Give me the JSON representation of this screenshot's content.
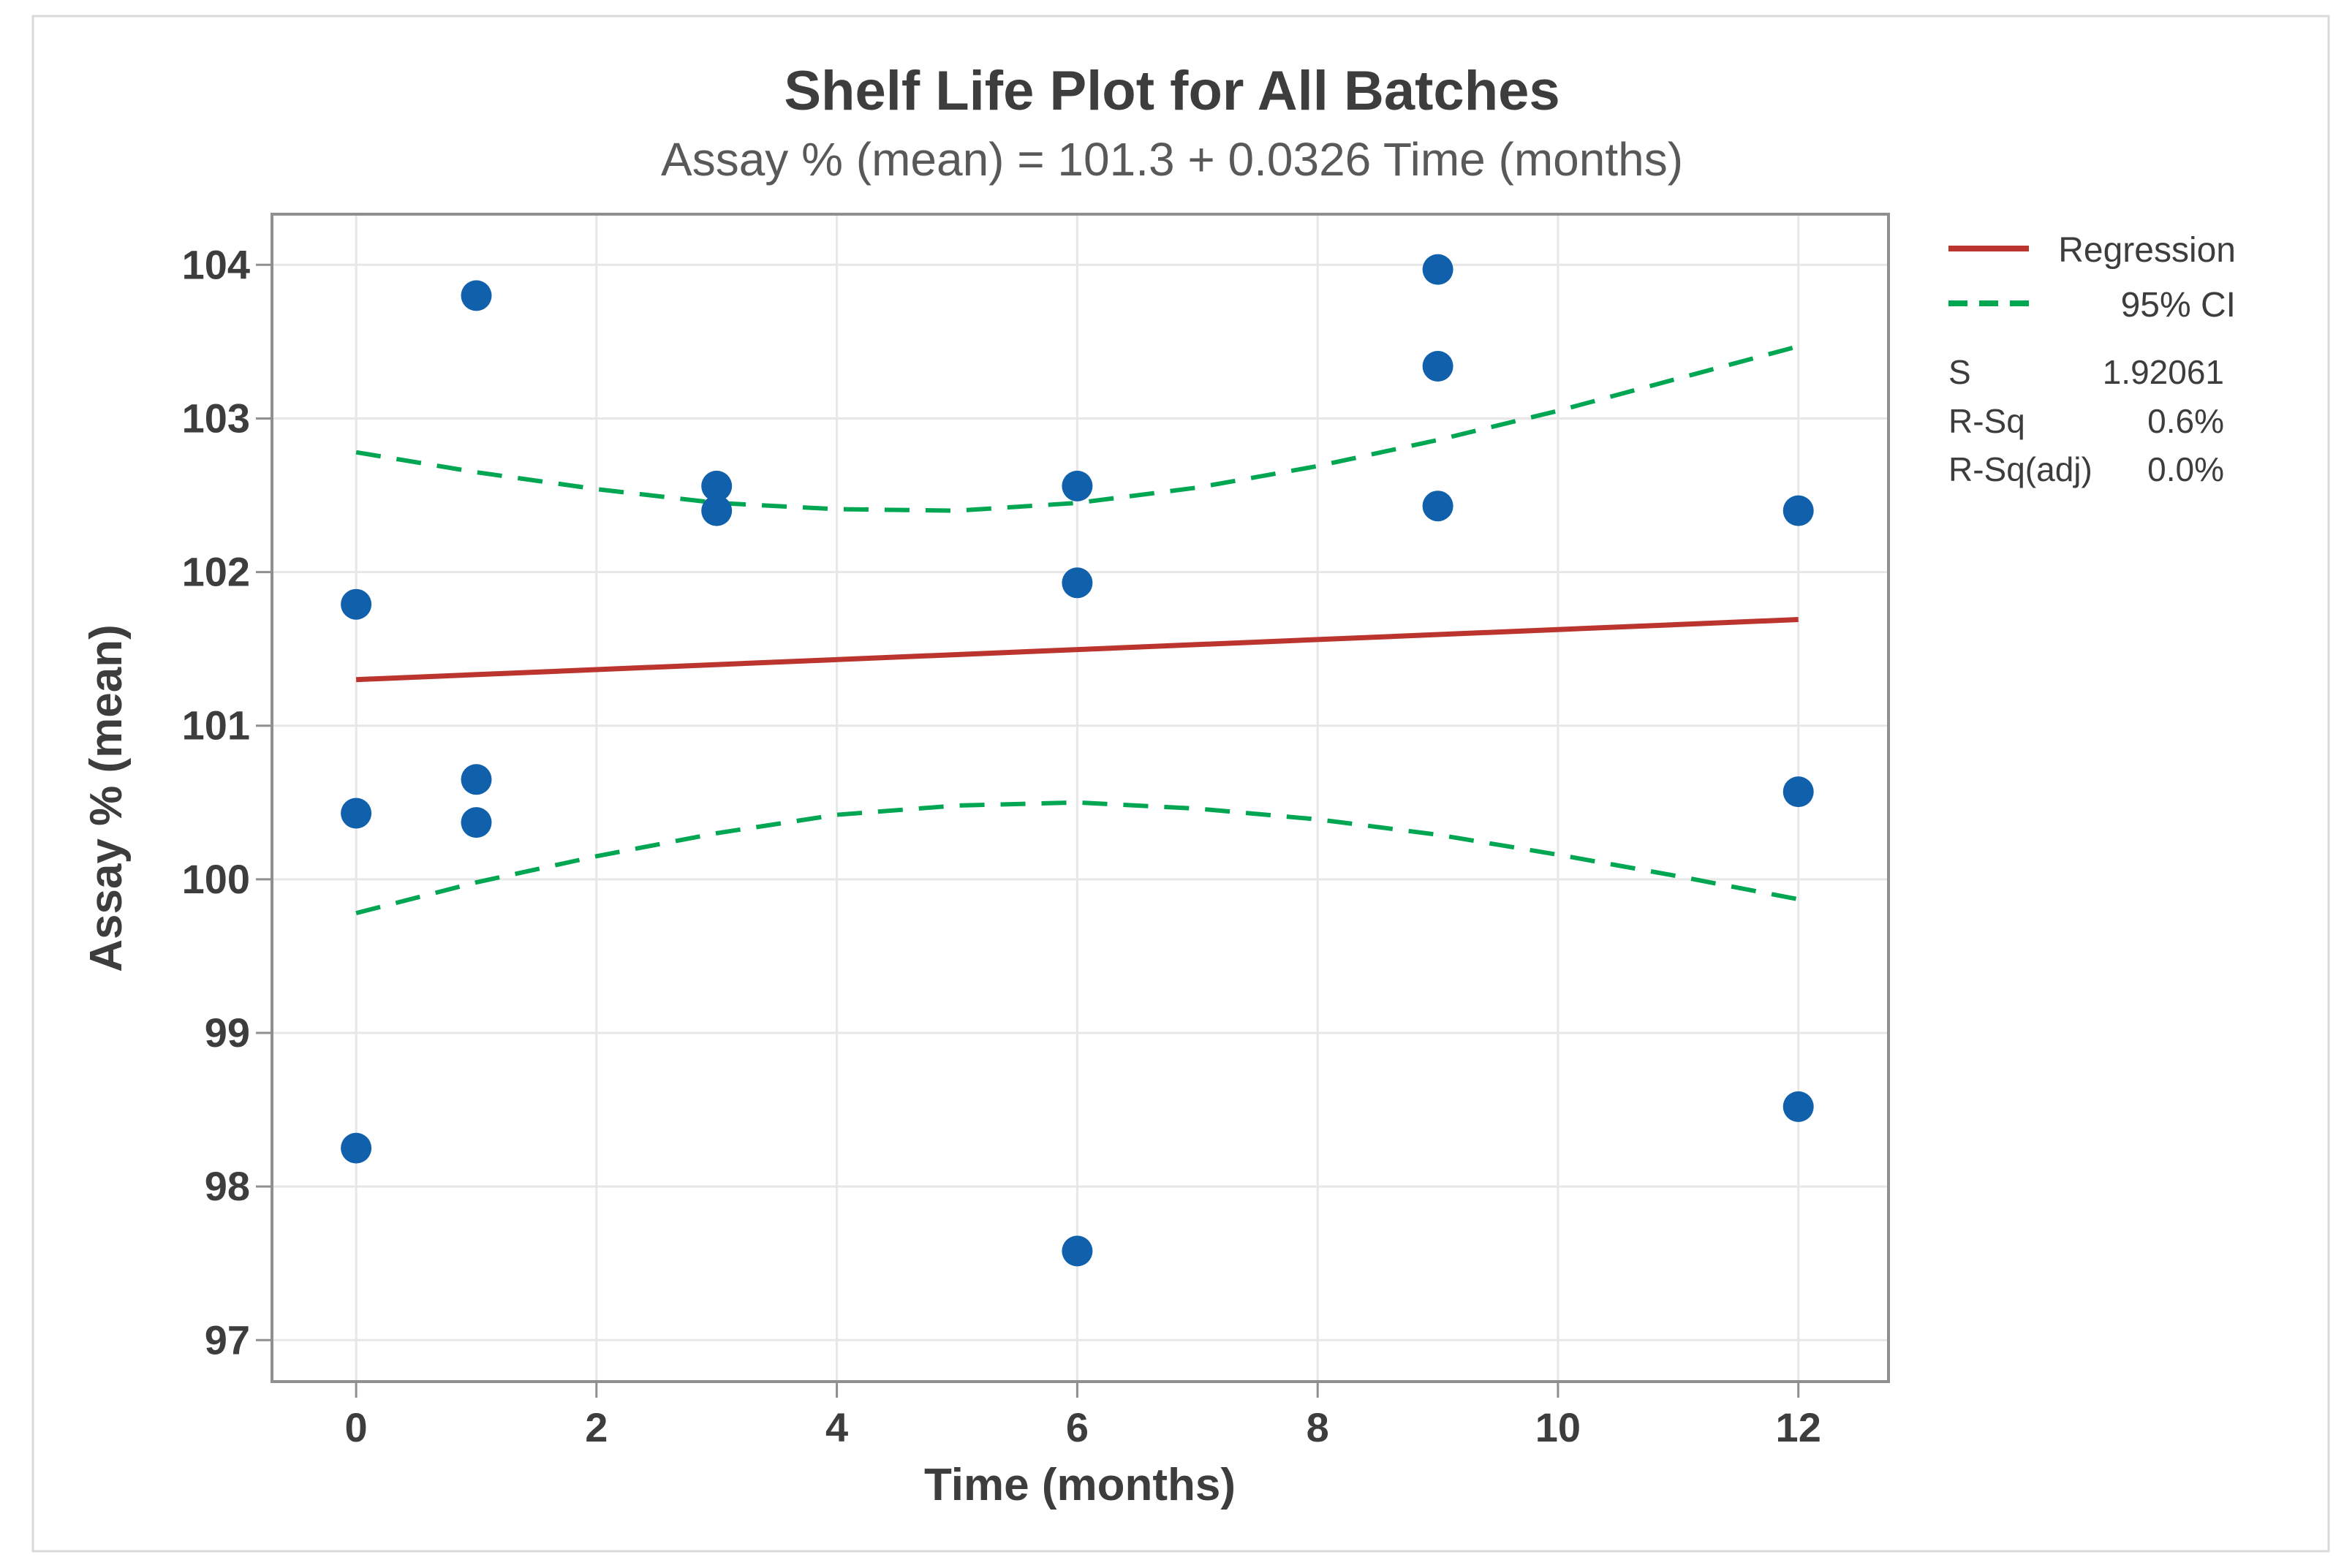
{
  "window": {
    "background": "#ffffff",
    "frame_border_color": "#d9d9d9"
  },
  "chart_data": {
    "type": "scatter",
    "title": "Shelf Life Plot for All Batches",
    "subtitle": "Assay % (mean) = 101.3 + 0.0326 Time (months)",
    "xlabel": "Time (months)",
    "ylabel": "Assay % (mean)",
    "xlim": [
      -0.7,
      12.75
    ],
    "ylim": [
      96.73,
      104.33
    ],
    "xticks": [
      0,
      2,
      4,
      6,
      8,
      10,
      12
    ],
    "yticks": [
      97,
      98,
      99,
      100,
      101,
      102,
      103,
      104
    ],
    "grid": "both",
    "point_color": "#1160ac",
    "grid_color": "#e7e7e7",
    "frame_color": "#8f8f8f",
    "points": [
      [
        0,
        101.79
      ],
      [
        0,
        100.43
      ],
      [
        0,
        98.25
      ],
      [
        1,
        103.8
      ],
      [
        1,
        100.65
      ],
      [
        1,
        100.37
      ],
      [
        3,
        102.56
      ],
      [
        3,
        102.4
      ],
      [
        6,
        102.56
      ],
      [
        6,
        101.93
      ],
      [
        6,
        97.58
      ],
      [
        9,
        103.97
      ],
      [
        9,
        103.34
      ],
      [
        9,
        102.43
      ],
      [
        12,
        102.4
      ],
      [
        12,
        100.57
      ],
      [
        12,
        98.52
      ]
    ],
    "regression": {
      "label": "Regression",
      "color": "#bb352e",
      "intercept": 101.3,
      "slope": 0.0326,
      "x_range": [
        0,
        12
      ]
    },
    "ci": {
      "label": "95% CI",
      "color": "#00a651",
      "x": [
        0,
        1,
        2,
        3,
        4,
        5,
        6,
        7,
        8,
        9,
        10,
        11,
        12
      ],
      "upper": [
        102.78,
        102.65,
        102.54,
        102.45,
        102.41,
        102.4,
        102.45,
        102.55,
        102.69,
        102.86,
        103.05,
        103.26,
        103.47
      ],
      "lower": [
        99.78,
        99.98,
        100.15,
        100.3,
        100.42,
        100.48,
        100.5,
        100.46,
        100.39,
        100.29,
        100.16,
        100.02,
        99.87
      ]
    },
    "legend": {
      "position": "top-right",
      "entries": [
        {
          "label": "Regression",
          "style": "solid",
          "color": "#bb352e"
        },
        {
          "label": "95% CI",
          "style": "dashed",
          "color": "#00a651"
        }
      ]
    },
    "stats": {
      "rows": [
        {
          "label": "S",
          "value": "1.92061"
        },
        {
          "label": "R-Sq",
          "value": "0.6%"
        },
        {
          "label": "R-Sq(adj)",
          "value": "0.0%"
        }
      ]
    }
  }
}
